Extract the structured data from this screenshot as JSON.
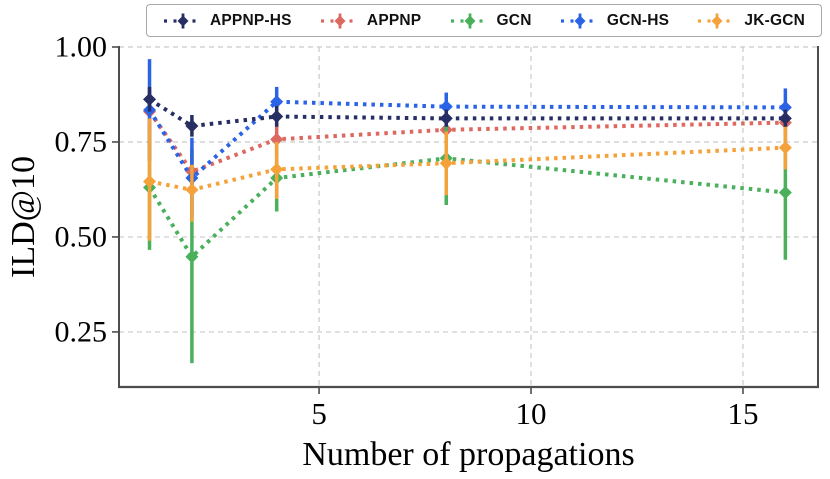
{
  "chart_data": {
    "type": "line",
    "title": "",
    "xlabel": "Number of propagations",
    "ylabel": "ILD@10",
    "x": [
      1,
      2,
      4,
      8,
      16
    ],
    "xlim": [
      0.28,
      16.77
    ],
    "ylim": [
      0.105,
      1.0
    ],
    "xticks": {
      "values": [
        5,
        10,
        15
      ],
      "labels": [
        "5",
        "10",
        "15"
      ]
    },
    "yticks": {
      "values": [
        1.0,
        0.75,
        0.5,
        0.25
      ],
      "labels": [
        "1.00",
        "0.75",
        "0.50",
        "0.25"
      ]
    },
    "grid": "dashed-both-axes",
    "legend_position": "top",
    "marker": "diamond",
    "linestyle": "dotted",
    "draw_order": [
      "APPNP",
      "GCN",
      "GCN-HS",
      "JK-GCN",
      "APPNP-HS"
    ],
    "series": [
      {
        "name": "APPNP-HS",
        "color": "#272e63",
        "values": [
          0.862,
          0.792,
          0.817,
          0.812,
          0.812
        ],
        "err_low": [
          0.83,
          0.764,
          0.79,
          0.79,
          0.79
        ],
        "err_high": [
          0.895,
          0.821,
          0.845,
          0.835,
          0.835
        ]
      },
      {
        "name": "APPNP",
        "color": "#dd685f",
        "values": [
          0.83,
          0.672,
          0.757,
          0.782,
          0.801
        ],
        "err_low": [
          0.775,
          0.612,
          0.712,
          0.748,
          0.765
        ],
        "err_high": [
          0.885,
          0.732,
          0.802,
          0.816,
          0.837
        ]
      },
      {
        "name": "GCN",
        "color": "#4ab05c",
        "values": [
          0.63,
          0.448,
          0.655,
          0.707,
          0.617
        ],
        "err_low": [
          0.466,
          0.168,
          0.567,
          0.584,
          0.44
        ],
        "err_high": [
          0.794,
          0.728,
          0.743,
          0.83,
          0.794
        ]
      },
      {
        "name": "GCN-HS",
        "color": "#2b63e6",
        "values": [
          0.834,
          0.655,
          0.856,
          0.843,
          0.841
        ],
        "err_low": [
          0.7,
          0.549,
          0.817,
          0.806,
          0.791
        ],
        "err_high": [
          0.968,
          0.761,
          0.895,
          0.88,
          0.891
        ]
      },
      {
        "name": "JK-GCN",
        "color": "#f5a23a",
        "values": [
          0.646,
          0.624,
          0.678,
          0.694,
          0.735
        ],
        "err_low": [
          0.49,
          0.54,
          0.6,
          0.61,
          0.678
        ],
        "err_high": [
          0.812,
          0.69,
          0.75,
          0.778,
          0.792
        ]
      }
    ],
    "axis_colors": {
      "spine": "#4d4d4d",
      "grid": "#c9c9c9",
      "text": "#000000"
    }
  }
}
